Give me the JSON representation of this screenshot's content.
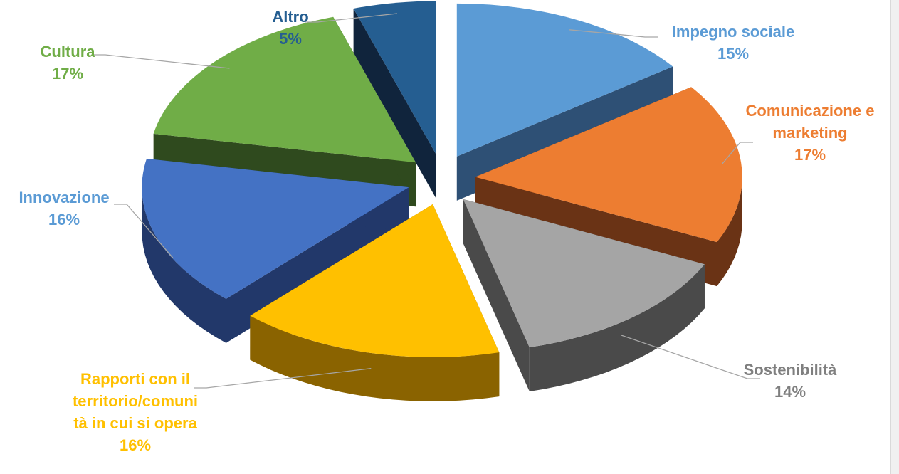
{
  "chart_data": {
    "type": "pie",
    "style": "3d-exploded",
    "unit": "%",
    "slices": [
      {
        "label": "Impegno sociale",
        "value": 15,
        "pct_label": "15%",
        "color": "#5b9bd5",
        "side_color": "#2e5075",
        "label_color": "#5b9bd5"
      },
      {
        "label": "Comunicazione e marketing",
        "value": 17,
        "pct_label": "17%",
        "color": "#ed7d31",
        "side_color": "#6a3315",
        "label_color": "#ed7d31"
      },
      {
        "label": "Sostenibilità",
        "value": 14,
        "pct_label": "14%",
        "color": "#a5a5a5",
        "side_color": "#4a4a4a",
        "label_color": "#7f7f7f"
      },
      {
        "label": "Rapporti con il territorio/comunità in cui si opera",
        "value": 16,
        "pct_label": "16%",
        "color": "#ffc000",
        "side_color": "#8a6300",
        "label_color": "#ffc000"
      },
      {
        "label": "Innovazione",
        "value": 16,
        "pct_label": "16%",
        "color": "#4472c4",
        "side_color": "#22386a",
        "label_color": "#5b9bd5"
      },
      {
        "label": "Cultura",
        "value": 17,
        "pct_label": "17%",
        "color": "#70ad47",
        "side_color": "#2f4a1e",
        "label_color": "#70ad47"
      },
      {
        "label": "Altro",
        "value": 5,
        "pct_label": "5%",
        "color": "#255e91",
        "side_color": "#10243c",
        "label_color": "#255e91"
      }
    ],
    "label_lines": [
      [
        "Impegno sociale",
        "15%"
      ],
      [
        "Comunicazione e",
        "marketing",
        "17%"
      ],
      [
        "Sostenibilità",
        "14%"
      ],
      [
        "Rapporti con il",
        "territorio/comuni",
        "tà in cui si opera",
        "16%"
      ],
      [
        "Innovazione",
        "16%"
      ],
      [
        "Cultura",
        "17%"
      ],
      [
        "Altro",
        "5%"
      ]
    ]
  }
}
